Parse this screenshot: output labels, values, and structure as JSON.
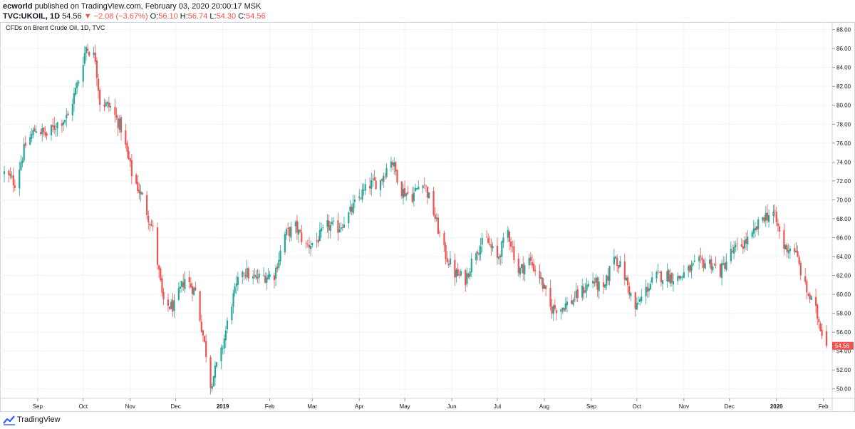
{
  "header": {
    "author": "ecworld",
    "published_text": " published on TradingView.com, February 03, 2020 20:00:17 MSK",
    "symbol": "TVC:UKOIL, 1D",
    "last": "54.56",
    "down_arrow": "▼",
    "change": "−2.08 (−3.67%)",
    "o_label": "O:",
    "o_value": "56.10",
    "h_label": "H:",
    "h_value": "56.74",
    "l_label": "L:",
    "l_value": "54.30",
    "c_label": "C:",
    "c_value": "54.56"
  },
  "footer": {
    "brand": "TradingView"
  },
  "colors": {
    "up": "#26a69a",
    "down": "#ef5350",
    "grid": "#f0f3fa",
    "axis": "#d1d4dc"
  },
  "chart_data": {
    "type": "candlestick",
    "title": "CFDs on Brent Crude Oil, 1D, TVC",
    "ylim": [
      49,
      88.8
    ],
    "y_ticks": [
      "88.00",
      "86.00",
      "84.00",
      "82.00",
      "80.00",
      "78.00",
      "76.00",
      "74.00",
      "72.00",
      "70.00",
      "68.00",
      "66.00",
      "64.00",
      "62.00",
      "60.00",
      "58.00",
      "56.00",
      "54.00",
      "52.00",
      "50.00"
    ],
    "x_ticks": [
      {
        "label": "Sep",
        "bold": false
      },
      {
        "label": "Oct",
        "bold": false
      },
      {
        "label": "Nov",
        "bold": false
      },
      {
        "label": "Dec",
        "bold": false
      },
      {
        "label": "2019",
        "bold": true
      },
      {
        "label": "Feb",
        "bold": false
      },
      {
        "label": "Mar",
        "bold": false
      },
      {
        "label": "Apr",
        "bold": false
      },
      {
        "label": "May",
        "bold": false
      },
      {
        "label": "Jun",
        "bold": false
      },
      {
        "label": "Jul",
        "bold": false
      },
      {
        "label": "Aug",
        "bold": false
      },
      {
        "label": "Sep",
        "bold": false
      },
      {
        "label": "Oct",
        "bold": false
      },
      {
        "label": "Nov",
        "bold": false
      },
      {
        "label": "Dec",
        "bold": false
      },
      {
        "label": "2020",
        "bold": true
      },
      {
        "label": "Feb",
        "bold": false
      }
    ],
    "last_price": "54.56",
    "series": [
      {
        "date": "2018-08-10",
        "close": 72.8
      },
      {
        "date": "2018-08-17",
        "close": 71.8
      },
      {
        "date": "2018-08-24",
        "close": 75.8
      },
      {
        "date": "2018-08-31",
        "close": 77.6
      },
      {
        "date": "2018-09-07",
        "close": 76.8
      },
      {
        "date": "2018-09-14",
        "close": 78.1
      },
      {
        "date": "2018-09-21",
        "close": 78.8
      },
      {
        "date": "2018-09-28",
        "close": 82.7
      },
      {
        "date": "2018-10-03",
        "close": 86.2
      },
      {
        "date": "2018-10-09",
        "close": 85.0
      },
      {
        "date": "2018-10-12",
        "close": 80.4
      },
      {
        "date": "2018-10-19",
        "close": 79.8
      },
      {
        "date": "2018-10-26",
        "close": 77.6
      },
      {
        "date": "2018-11-02",
        "close": 72.8
      },
      {
        "date": "2018-11-09",
        "close": 70.2
      },
      {
        "date": "2018-11-16",
        "close": 66.8
      },
      {
        "date": "2018-11-23",
        "close": 58.8
      },
      {
        "date": "2018-11-30",
        "close": 58.7
      },
      {
        "date": "2018-12-07",
        "close": 61.7
      },
      {
        "date": "2018-12-14",
        "close": 60.3
      },
      {
        "date": "2018-12-21",
        "close": 53.8
      },
      {
        "date": "2018-12-24",
        "close": 50.5
      },
      {
        "date": "2018-12-31",
        "close": 53.8
      },
      {
        "date": "2019-01-07",
        "close": 59.2
      },
      {
        "date": "2019-01-14",
        "close": 62.7
      },
      {
        "date": "2019-01-21",
        "close": 61.6
      },
      {
        "date": "2019-01-28",
        "close": 61.9
      },
      {
        "date": "2019-02-04",
        "close": 62.1
      },
      {
        "date": "2019-02-11",
        "close": 66.3
      },
      {
        "date": "2019-02-18",
        "close": 67.1
      },
      {
        "date": "2019-02-25",
        "close": 65.1
      },
      {
        "date": "2019-03-04",
        "close": 65.7
      },
      {
        "date": "2019-03-11",
        "close": 67.2
      },
      {
        "date": "2019-03-18",
        "close": 67.0
      },
      {
        "date": "2019-03-25",
        "close": 68.4
      },
      {
        "date": "2019-04-01",
        "close": 70.3
      },
      {
        "date": "2019-04-08",
        "close": 71.6
      },
      {
        "date": "2019-04-15",
        "close": 72.0
      },
      {
        "date": "2019-04-22",
        "close": 74.4
      },
      {
        "date": "2019-04-29",
        "close": 71.0
      },
      {
        "date": "2019-05-06",
        "close": 70.4
      },
      {
        "date": "2019-05-13",
        "close": 72.2
      },
      {
        "date": "2019-05-20",
        "close": 68.7
      },
      {
        "date": "2019-05-27",
        "close": 64.5
      },
      {
        "date": "2019-06-03",
        "close": 62.2
      },
      {
        "date": "2019-06-10",
        "close": 61.6
      },
      {
        "date": "2019-06-17",
        "close": 64.8
      },
      {
        "date": "2019-06-24",
        "close": 65.7
      },
      {
        "date": "2019-07-01",
        "close": 63.7
      },
      {
        "date": "2019-07-08",
        "close": 66.7
      },
      {
        "date": "2019-07-15",
        "close": 62.4
      },
      {
        "date": "2019-07-22",
        "close": 63.6
      },
      {
        "date": "2019-07-29",
        "close": 61.9
      },
      {
        "date": "2019-08-05",
        "close": 58.5
      },
      {
        "date": "2019-08-12",
        "close": 58.6
      },
      {
        "date": "2019-08-19",
        "close": 59.3
      },
      {
        "date": "2019-08-26",
        "close": 60.4
      },
      {
        "date": "2019-09-02",
        "close": 61.5
      },
      {
        "date": "2019-09-09",
        "close": 60.2
      },
      {
        "date": "2019-09-16",
        "close": 64.3
      },
      {
        "date": "2019-09-23",
        "close": 61.9
      },
      {
        "date": "2019-09-30",
        "close": 58.4
      },
      {
        "date": "2019-10-07",
        "close": 60.5
      },
      {
        "date": "2019-10-14",
        "close": 61.9
      },
      {
        "date": "2019-10-21",
        "close": 62.0
      },
      {
        "date": "2019-10-28",
        "close": 61.7
      },
      {
        "date": "2019-11-04",
        "close": 62.5
      },
      {
        "date": "2019-11-11",
        "close": 63.3
      },
      {
        "date": "2019-11-18",
        "close": 63.4
      },
      {
        "date": "2019-11-25",
        "close": 62.4
      },
      {
        "date": "2019-12-02",
        "close": 64.4
      },
      {
        "date": "2019-12-09",
        "close": 65.2
      },
      {
        "date": "2019-12-16",
        "close": 66.1
      },
      {
        "date": "2019-12-23",
        "close": 68.2
      },
      {
        "date": "2019-12-30",
        "close": 68.6
      },
      {
        "date": "2020-01-06",
        "close": 65.0
      },
      {
        "date": "2020-01-13",
        "close": 64.8
      },
      {
        "date": "2020-01-20",
        "close": 60.7
      },
      {
        "date": "2020-01-27",
        "close": 58.2
      },
      {
        "date": "2020-02-03",
        "close": 54.56
      }
    ]
  }
}
